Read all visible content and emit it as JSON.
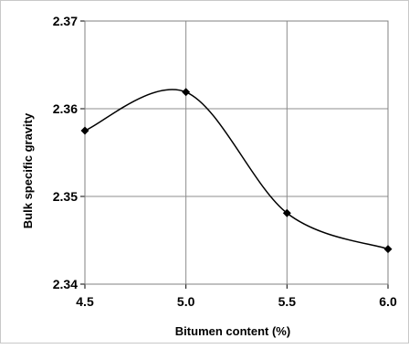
{
  "chart_data": {
    "type": "line",
    "title": "",
    "xlabel": "Bitumen content (%)",
    "ylabel": "Bulk specific gravity",
    "x": [
      4.5,
      5.0,
      5.5,
      6.0
    ],
    "series": [
      {
        "values": [
          2.3575,
          2.3619,
          2.3481,
          2.344
        ]
      }
    ],
    "xlim": [
      4.5,
      6.0
    ],
    "ylim": [
      2.34,
      2.37
    ],
    "x_ticks": [
      "4.5",
      "5.0",
      "5.5",
      "6.0"
    ],
    "y_ticks": [
      "2.34",
      "2.35",
      "2.36",
      "2.37"
    ],
    "grid": true,
    "smooth_line": true,
    "marker": "diamond",
    "line_color": "#000000",
    "grid_color": "#8c8c8c"
  }
}
